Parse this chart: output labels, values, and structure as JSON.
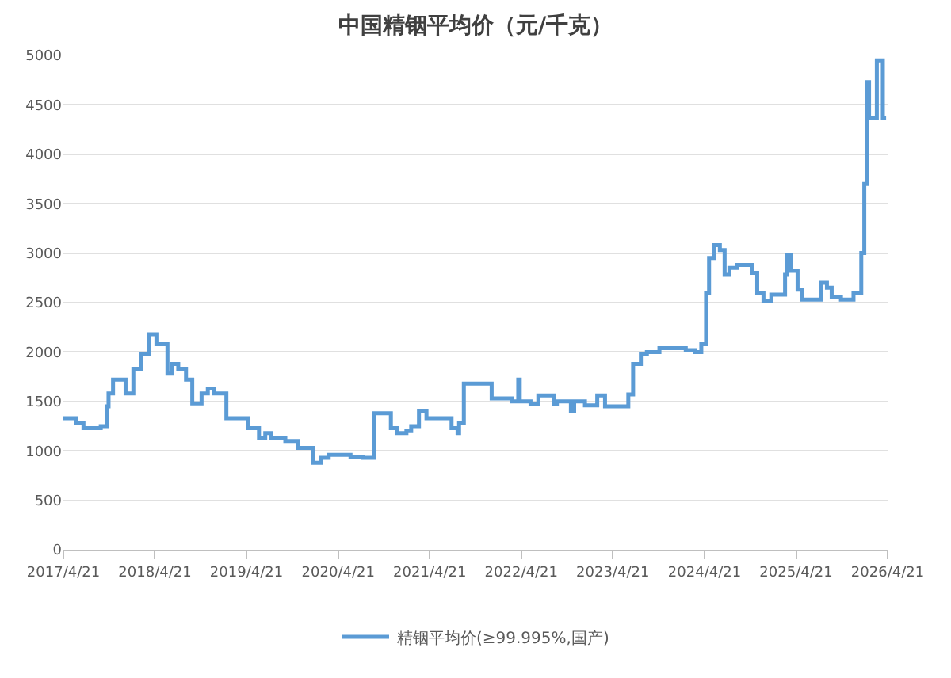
{
  "chart_data": {
    "type": "step",
    "title": "中国精铟平均价（元/千克）",
    "x": [
      "2017-04-21",
      "2017-06-10",
      "2017-07-10",
      "2017-09-17",
      "2017-10-11",
      "2017-10-18",
      "2017-11-05",
      "2017-12-25",
      "2018-01-25",
      "2018-02-25",
      "2018-03-27",
      "2018-04-27",
      "2018-06-10",
      "2018-06-28",
      "2018-07-23",
      "2018-08-23",
      "2018-09-17",
      "2018-10-24",
      "2018-11-18",
      "2018-12-12",
      "2019-01-31",
      "2019-04-03",
      "2019-04-28",
      "2019-06-10",
      "2019-07-05",
      "2019-07-29",
      "2019-09-23",
      "2019-11-12",
      "2020-01-13",
      "2020-02-13",
      "2020-03-14",
      "2020-05-15",
      "2020-06-09",
      "2020-07-29",
      "2020-09-10",
      "2020-10-23",
      "2020-11-17",
      "2020-12-12",
      "2021-01-18",
      "2021-02-06",
      "2021-03-09",
      "2021-04-08",
      "2021-06-28",
      "2021-07-17",
      "2021-08-10",
      "2021-08-16",
      "2021-09-04",
      "2021-11-23",
      "2021-12-24",
      "2022-03-15",
      "2022-04-09",
      "2022-04-15",
      "2022-05-28",
      "2022-06-28",
      "2022-08-29",
      "2022-09-10",
      "2022-11-05",
      "2022-11-18",
      "2022-12-31",
      "2023-02-18",
      "2023-03-21",
      "2023-05-22",
      "2023-06-22",
      "2023-07-11",
      "2023-08-11",
      "2023-09-04",
      "2023-10-24",
      "2024-02-06",
      "2024-03-14",
      "2024-04-08",
      "2024-04-27",
      "2024-05-09",
      "2024-05-28",
      "2024-06-21",
      "2024-07-10",
      "2024-07-29",
      "2024-08-28",
      "2024-09-28",
      "2024-10-29",
      "2024-11-17",
      "2024-12-12",
      "2025-01-12",
      "2025-03-02",
      "2025-03-08",
      "2025-03-15",
      "2025-04-02",
      "2025-04-27",
      "2025-05-15",
      "2025-07-16",
      "2025-07-29",
      "2025-08-22",
      "2025-09-10",
      "2025-10-17",
      "2025-12-06",
      "2026-01-06",
      "2026-01-18",
      "2026-01-30",
      "2026-02-06",
      "2026-03-09",
      "2026-03-21",
      "2026-04-02",
      "2026-04-15"
    ],
    "series": [
      {
        "name": "精铟平均价(≥99.995%,国产)",
        "color": "#5b9bd5",
        "values": [
          1330,
          1280,
          1230,
          1250,
          1450,
          1580,
          1720,
          1580,
          1830,
          1980,
          2180,
          2080,
          1780,
          1880,
          1830,
          1720,
          1480,
          1580,
          1630,
          1580,
          1330,
          1330,
          1230,
          1130,
          1180,
          1130,
          1100,
          1030,
          880,
          930,
          960,
          960,
          940,
          930,
          1380,
          1380,
          1230,
          1180,
          1200,
          1250,
          1400,
          1330,
          1330,
          1230,
          1180,
          1280,
          1680,
          1680,
          1530,
          1500,
          1720,
          1500,
          1470,
          1560,
          1470,
          1500,
          1400,
          1500,
          1460,
          1560,
          1450,
          1450,
          1570,
          1880,
          1980,
          2000,
          2040,
          2020,
          2000,
          2080,
          2600,
          2950,
          3080,
          3030,
          2780,
          2850,
          2880,
          2880,
          2800,
          2600,
          2520,
          2580,
          2580,
          2780,
          2980,
          2820,
          2630,
          2530,
          2530,
          2700,
          2650,
          2560,
          2530,
          2600,
          3000,
          3700,
          4730,
          4370,
          4950,
          4950,
          4370,
          4370
        ]
      }
    ],
    "xlim": [
      "2017-04-21",
      "2026-04-21"
    ],
    "xticks": [
      {
        "value": "2017-04-21",
        "label": "2017/4/21"
      },
      {
        "value": "2018-04-21",
        "label": "2018/4/21"
      },
      {
        "value": "2019-04-21",
        "label": "2019/4/21"
      },
      {
        "value": "2020-04-21",
        "label": "2020/4/21"
      },
      {
        "value": "2021-04-21",
        "label": "2021/4/21"
      },
      {
        "value": "2022-04-21",
        "label": "2022/4/21"
      },
      {
        "value": "2023-04-21",
        "label": "2023/4/21"
      },
      {
        "value": "2024-04-21",
        "label": "2024/4/21"
      },
      {
        "value": "2025-04-21",
        "label": "2025/4/21"
      },
      {
        "value": "2026-04-21",
        "label": "2026/4/21"
      }
    ],
    "ylim": [
      0,
      5000
    ],
    "yticks": [
      0,
      500,
      1000,
      1500,
      2000,
      2500,
      3000,
      3500,
      4000,
      4500,
      5000
    ],
    "grid": "y",
    "legend": "bottom",
    "marker": "none",
    "line_style": "solid"
  }
}
